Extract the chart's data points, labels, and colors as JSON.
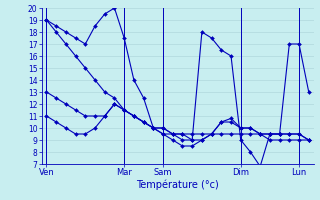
{
  "xlabel": "Température (°c)",
  "bg_color": "#c8eef0",
  "grid_color": "#b0d8dc",
  "line_color": "#0000bb",
  "ylim": [
    7,
    20
  ],
  "yticks": [
    7,
    8,
    9,
    10,
    11,
    12,
    13,
    14,
    15,
    16,
    17,
    18,
    19,
    20
  ],
  "x_tick_positions": [
    0,
    8,
    12,
    20,
    26
  ],
  "x_labels": [
    "Ven",
    "Mar",
    "Sam",
    "Dim",
    "Lun"
  ],
  "num_points": 28,
  "vlines": [
    0,
    8,
    12,
    20,
    26
  ],
  "series": [
    [
      19,
      18.5,
      18,
      17.5,
      17,
      18.5,
      19.5,
      20,
      17.5,
      14,
      12.5,
      10,
      10,
      9.5,
      9.5,
      9,
      18,
      17.5,
      16.5,
      16,
      9,
      8,
      6.8,
      9.5,
      9.5,
      17,
      17,
      13
    ],
    [
      19,
      18,
      17,
      16,
      15,
      14,
      13,
      12.5,
      11.5,
      11,
      10.5,
      10,
      10,
      9.5,
      9.5,
      9.5,
      9.5,
      9.5,
      9.5,
      9.5,
      9.5,
      9.5,
      9.5,
      9.5,
      9.5,
      9.5,
      9.5,
      9
    ],
    [
      13,
      12.5,
      12,
      11.5,
      11,
      11,
      11,
      12,
      11.5,
      11,
      10.5,
      10,
      9.5,
      9.5,
      9,
      9,
      9,
      9.5,
      10.5,
      10.8,
      10,
      10,
      9.5,
      9.5,
      9.5,
      9.5,
      9.5,
      9
    ],
    [
      11,
      10.5,
      10,
      9.5,
      9.5,
      10,
      11,
      12,
      11.5,
      11,
      10.5,
      10,
      9.5,
      9,
      8.5,
      8.5,
      9,
      9.5,
      10.5,
      10.5,
      10,
      10,
      9.5,
      9,
      9,
      9,
      9,
      9
    ]
  ]
}
